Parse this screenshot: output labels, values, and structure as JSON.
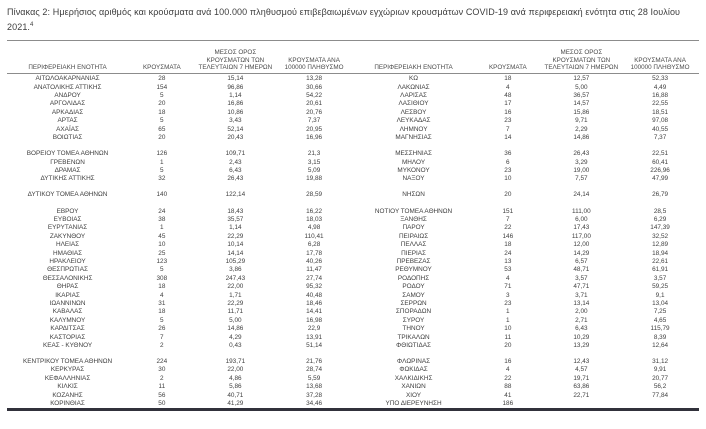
{
  "title": "Πίνακας 2:  Ημερήσιος αριθμός και κρούσματα ανά 100.000 πληθυσμού επιβεβαιωμένων εγχώριων κρουσμάτων COVID-19 ανά περιφερειακή ενότητα στις 28 Ιουλίου 2021.",
  "title_superscript": "4",
  "colors": {
    "text": "#404040",
    "rule": "#8c8c8c",
    "bottom_border": "#31313b",
    "background": "#ffffff"
  },
  "columns": {
    "region": "ΠΕΡΙΦΕΡΕΙΑΚΗ ΕΝΟΤΗΤΑ",
    "cases": "ΚΡΟΥΣΜΑΤΑ",
    "avg7": "ΜΕΣΟΣ ΟΡΟΣ ΚΡΟΥΣΜΑΤΩΝ ΤΩΝ ΤΕΛΕΥΤΑΙΩΝ 7 ΗΜΕΡΩΝ",
    "per100k": "ΚΡΟΥΣΜΑΤΑ ΑΝΑ 100000 ΠΛΗΘΥΣΜΟ"
  },
  "left_rows": [
    {
      "region": "ΑΙΤΩΛΟΑΚΑΡΝΑΝΙΑΣ",
      "cases": "28",
      "avg7": "15,14",
      "per100k": "13,28"
    },
    {
      "region": "ΑΝΑΤΟΛΙΚΗΣ ΑΤΤΙΚΗΣ",
      "cases": "154",
      "avg7": "96,86",
      "per100k": "30,66"
    },
    {
      "region": "ΑΝΔΡΟΥ",
      "cases": "5",
      "avg7": "1,14",
      "per100k": "54,22"
    },
    {
      "region": "ΑΡΓΟΛΙΔΑΣ",
      "cases": "20",
      "avg7": "16,86",
      "per100k": "20,61"
    },
    {
      "region": "ΑΡΚΑΔΙΑΣ",
      "cases": "18",
      "avg7": "10,86",
      "per100k": "20,76"
    },
    {
      "region": "ΑΡΤΑΣ",
      "cases": "5",
      "avg7": "3,43",
      "per100k": "7,37"
    },
    {
      "region": "ΑΧΑΪΑΣ",
      "cases": "65",
      "avg7": "52,14",
      "per100k": "20,95"
    },
    {
      "region": "ΒΟΙΩΤΙΑΣ",
      "cases": "20",
      "avg7": "20,43",
      "per100k": "16,96"
    },
    {
      "gap": true
    },
    {
      "region": "ΒΟΡΕΙΟΥ ΤΟΜΕΑ ΑΘΗΝΩΝ",
      "cases": "126",
      "avg7": "109,71",
      "per100k": "21,3"
    },
    {
      "region": "ΓΡΕΒΕΝΩΝ",
      "cases": "1",
      "avg7": "2,43",
      "per100k": "3,15"
    },
    {
      "region": "ΔΡΑΜΑΣ",
      "cases": "5",
      "avg7": "6,43",
      "per100k": "5,09"
    },
    {
      "region": "ΔΥΤΙΚΗΣ ΑΤΤΙΚΗΣ",
      "cases": "32",
      "avg7": "26,43",
      "per100k": "19,88"
    },
    {
      "gap": true
    },
    {
      "region": "ΔΥΤΙΚΟΥ ΤΟΜΕΑ ΑΘΗΝΩΝ",
      "cases": "140",
      "avg7": "122,14",
      "per100k": "28,59"
    },
    {
      "gap": true
    },
    {
      "region": "ΕΒΡΟΥ",
      "cases": "24",
      "avg7": "18,43",
      "per100k": "16,22"
    },
    {
      "region": "ΕΥΒΟΙΑΣ",
      "cases": "38",
      "avg7": "35,57",
      "per100k": "18,03"
    },
    {
      "region": "ΕΥΡΥΤΑΝΙΑΣ",
      "cases": "1",
      "avg7": "1,14",
      "per100k": "4,98"
    },
    {
      "region": "ΖΑΚΥΝΘΟΥ",
      "cases": "45",
      "avg7": "22,29",
      "per100k": "110,41"
    },
    {
      "region": "ΗΛΕΙΑΣ",
      "cases": "10",
      "avg7": "10,14",
      "per100k": "6,28"
    },
    {
      "region": "ΗΜΑΘΙΑΣ",
      "cases": "25",
      "avg7": "14,14",
      "per100k": "17,78"
    },
    {
      "region": "ΗΡΑΚΛΕΙΟΥ",
      "cases": "123",
      "avg7": "105,29",
      "per100k": "40,26"
    },
    {
      "region": "ΘΕΣΠΡΩΤΙΑΣ",
      "cases": "5",
      "avg7": "3,86",
      "per100k": "11,47"
    },
    {
      "region": "ΘΕΣΣΑΛΟΝΙΚΗΣ",
      "cases": "308",
      "avg7": "247,43",
      "per100k": "27,74"
    },
    {
      "region": "ΘΗΡΑΣ",
      "cases": "18",
      "avg7": "22,00",
      "per100k": "95,32"
    },
    {
      "region": "ΙΚΑΡΙΑΣ",
      "cases": "4",
      "avg7": "1,71",
      "per100k": "40,48"
    },
    {
      "region": "ΙΩΑΝΝΙΝΩΝ",
      "cases": "31",
      "avg7": "22,29",
      "per100k": "18,46"
    },
    {
      "region": "ΚΑΒΑΛΑΣ",
      "cases": "18",
      "avg7": "11,71",
      "per100k": "14,41"
    },
    {
      "region": "ΚΑΛΥΜΝΟΥ",
      "cases": "5",
      "avg7": "5,00",
      "per100k": "16,98"
    },
    {
      "region": "ΚΑΡΔΙΤΣΑΣ",
      "cases": "26",
      "avg7": "14,86",
      "per100k": "22,9"
    },
    {
      "region": "ΚΑΣΤΟΡΙΑΣ",
      "cases": "7",
      "avg7": "4,29",
      "per100k": "13,91"
    },
    {
      "region": "ΚΕΑΣ - ΚΥΘΝΟΥ",
      "cases": "2",
      "avg7": "0,43",
      "per100k": "51,14"
    },
    {
      "gap": true
    },
    {
      "region": "ΚΕΝΤΡΙΚΟΥ ΤΟΜΕΑ ΑΘΗΝΩΝ",
      "cases": "224",
      "avg7": "193,71",
      "per100k": "21,76"
    },
    {
      "region": "ΚΕΡΚΥΡΑΣ",
      "cases": "30",
      "avg7": "22,00",
      "per100k": "28,74"
    },
    {
      "region": "ΚΕΦΑΛΛΗΝΙΑΣ",
      "cases": "2",
      "avg7": "4,86",
      "per100k": "5,59"
    },
    {
      "region": "ΚΙΛΚΙΣ",
      "cases": "11",
      "avg7": "5,86",
      "per100k": "13,68"
    },
    {
      "region": "ΚΟΖΑΝΗΣ",
      "cases": "56",
      "avg7": "40,71",
      "per100k": "37,28"
    },
    {
      "region": "ΚΟΡΙΝΘΙΑΣ",
      "cases": "50",
      "avg7": "41,29",
      "per100k": "34,46"
    }
  ],
  "right_rows": [
    {
      "region": "ΚΩ",
      "cases": "18",
      "avg7": "12,57",
      "per100k": "52,33"
    },
    {
      "region": "ΛΑΚΩΝΙΑΣ",
      "cases": "4",
      "avg7": "5,00",
      "per100k": "4,49"
    },
    {
      "region": "ΛΑΡΙΣΑΣ",
      "cases": "48",
      "avg7": "36,57",
      "per100k": "16,88"
    },
    {
      "region": "ΛΑΣΙΘΙΟΥ",
      "cases": "17",
      "avg7": "14,57",
      "per100k": "22,55"
    },
    {
      "region": "ΛΕΣΒΟΥ",
      "cases": "16",
      "avg7": "15,86",
      "per100k": "18,51"
    },
    {
      "region": "ΛΕΥΚΑΔΑΣ",
      "cases": "23",
      "avg7": "9,71",
      "per100k": "97,08"
    },
    {
      "region": "ΛΗΜΝΟΥ",
      "cases": "7",
      "avg7": "2,29",
      "per100k": "40,55"
    },
    {
      "region": "ΜΑΓΝΗΣΙΑΣ",
      "cases": "14",
      "avg7": "14,86",
      "per100k": "7,37"
    },
    {
      "gap": true
    },
    {
      "region": "ΜΕΣΣΗΝΙΑΣ",
      "cases": "36",
      "avg7": "26,43",
      "per100k": "22,51"
    },
    {
      "region": "ΜΗΛΟΥ",
      "cases": "6",
      "avg7": "3,29",
      "per100k": "60,41"
    },
    {
      "region": "ΜΥΚΟΝΟΥ",
      "cases": "23",
      "avg7": "19,00",
      "per100k": "226,96"
    },
    {
      "region": "ΝΑΞΟΥ",
      "cases": "10",
      "avg7": "7,57",
      "per100k": "47,99"
    },
    {
      "gap": true
    },
    {
      "region": "ΝΗΣΩΝ",
      "cases": "20",
      "avg7": "24,14",
      "per100k": "26,79"
    },
    {
      "gap": true
    },
    {
      "region": "ΝΟΤΙΟΥ ΤΟΜΕΑ ΑΘΗΝΩΝ",
      "cases": "151",
      "avg7": "111,00",
      "per100k": "28,5"
    },
    {
      "region": "ΞΑΝΘΗΣ",
      "cases": "7",
      "avg7": "6,00",
      "per100k": "6,29"
    },
    {
      "region": "ΠΑΡΟΥ",
      "cases": "22",
      "avg7": "17,43",
      "per100k": "147,39"
    },
    {
      "region": "ΠΕΙΡΑΙΩΣ",
      "cases": "146",
      "avg7": "117,00",
      "per100k": "32,52"
    },
    {
      "region": "ΠΕΛΛΑΣ",
      "cases": "18",
      "avg7": "12,00",
      "per100k": "12,89"
    },
    {
      "region": "ΠΙΕΡΙΑΣ",
      "cases": "24",
      "avg7": "14,29",
      "per100k": "18,94"
    },
    {
      "region": "ΠΡΕΒΕΖΑΣ",
      "cases": "13",
      "avg7": "6,57",
      "per100k": "22,61"
    },
    {
      "region": "ΡΕΘΥΜΝΟΥ",
      "cases": "53",
      "avg7": "48,71",
      "per100k": "61,91"
    },
    {
      "region": "ΡΟΔΟΠΗΣ",
      "cases": "4",
      "avg7": "3,57",
      "per100k": "3,57"
    },
    {
      "region": "ΡΟΔΟΥ",
      "cases": "71",
      "avg7": "47,71",
      "per100k": "59,25"
    },
    {
      "region": "ΣΑΜΟΥ",
      "cases": "3",
      "avg7": "3,71",
      "per100k": "9,1"
    },
    {
      "region": "ΣΕΡΡΩΝ",
      "cases": "23",
      "avg7": "13,14",
      "per100k": "13,04"
    },
    {
      "region": "ΣΠΟΡΑΔΩΝ",
      "cases": "1",
      "avg7": "2,00",
      "per100k": "7,25"
    },
    {
      "region": "ΣΥΡΟΥ",
      "cases": "1",
      "avg7": "2,71",
      "per100k": "4,65"
    },
    {
      "region": "ΤΗΝΟΥ",
      "cases": "10",
      "avg7": "6,43",
      "per100k": "115,79"
    },
    {
      "region": "ΤΡΙΚΑΛΩΝ",
      "cases": "11",
      "avg7": "10,29",
      "per100k": "8,39"
    },
    {
      "region": "ΦΘΙΩΤΙΔΑΣ",
      "cases": "20",
      "avg7": "13,29",
      "per100k": "12,64"
    },
    {
      "gap": true
    },
    {
      "region": "ΦΛΩΡΙΝΑΣ",
      "cases": "16",
      "avg7": "12,43",
      "per100k": "31,12"
    },
    {
      "region": "ΦΩΚΙΔΑΣ",
      "cases": "4",
      "avg7": "4,57",
      "per100k": "9,91"
    },
    {
      "region": "ΧΑΛΚΙΔΙΚΗΣ",
      "cases": "22",
      "avg7": "19,71",
      "per100k": "20,77"
    },
    {
      "region": "ΧΑΝΙΩΝ",
      "cases": "88",
      "avg7": "63,86",
      "per100k": "56,2"
    },
    {
      "region": "ΧΙΟΥ",
      "cases": "41",
      "avg7": "22,71",
      "per100k": "77,84"
    },
    {
      "region": "ΥΠΟ ΔΙΕΡΕΥΝΗΣΗ",
      "cases": "186",
      "avg7": "",
      "per100k": ""
    }
  ]
}
